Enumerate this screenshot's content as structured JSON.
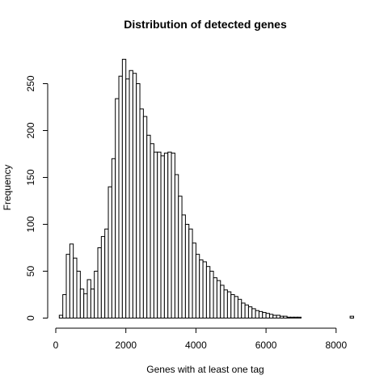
{
  "chart_data": {
    "type": "bar",
    "title": "Distribution of detected genes",
    "xlabel": "Genes with at least one tag",
    "ylabel": "Frequency",
    "x_ticks": [
      0,
      2000,
      4000,
      6000,
      8000
    ],
    "y_ticks": [
      0,
      50,
      100,
      150,
      200,
      250
    ],
    "x_tick_labels": [
      "0",
      "2000",
      "4000",
      "6000",
      "8000"
    ],
    "y_tick_labels": [
      "0",
      "50",
      "100",
      "150",
      "200",
      "250"
    ],
    "xlim": [
      0,
      8400
    ],
    "ylim": [
      0,
      276
    ],
    "bin_width": 100,
    "bin_start": 100,
    "counts": [
      3,
      25,
      68,
      79,
      64,
      50,
      31,
      26,
      41,
      31,
      50,
      75,
      87,
      95,
      140,
      170,
      234,
      258,
      276,
      255,
      264,
      261,
      250,
      223,
      215,
      195,
      186,
      177,
      177,
      173,
      176,
      177,
      176,
      153,
      130,
      110,
      100,
      95,
      80,
      68,
      62,
      60,
      55,
      50,
      43,
      40,
      35,
      30,
      28,
      25,
      23,
      20,
      16,
      14,
      12,
      10,
      8,
      7,
      6,
      5,
      4,
      3,
      3,
      2,
      2,
      1,
      1,
      1,
      1,
      0,
      0,
      0,
      0,
      0,
      0,
      0,
      0,
      0,
      0,
      0,
      0,
      0,
      0,
      2
    ],
    "grid": false,
    "legend": "none"
  }
}
